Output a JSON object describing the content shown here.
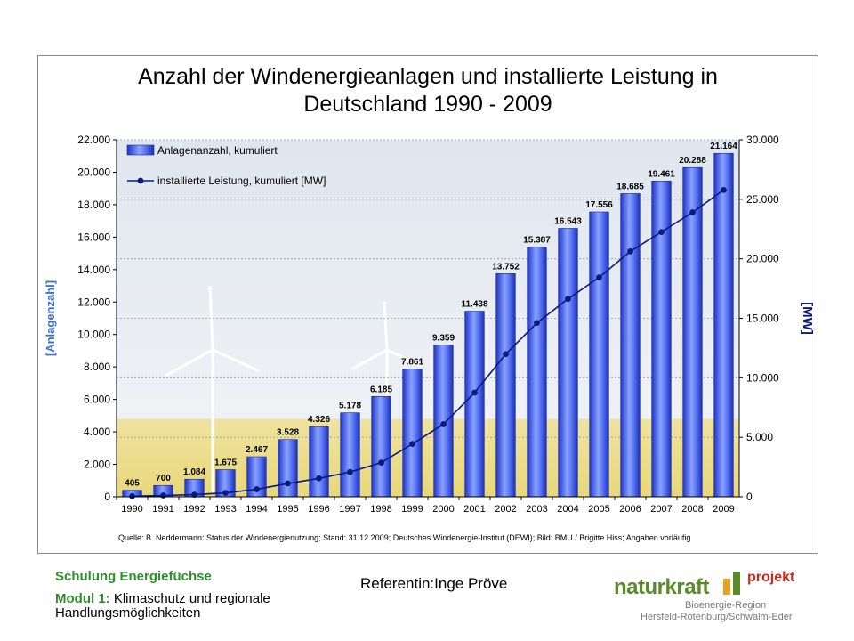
{
  "chart_data": {
    "type": "bar",
    "title": "Anzahl der Windenergieanlagen und installierte Leistung in\nDeutschland 1990 - 2009",
    "categories": [
      "1990",
      "1991",
      "1992",
      "1993",
      "1994",
      "1995",
      "1996",
      "1997",
      "1998",
      "1999",
      "2000",
      "2001",
      "2002",
      "2003",
      "2004",
      "2005",
      "2006",
      "2007",
      "2008",
      "2009"
    ],
    "series": [
      {
        "name": "Anlagenanzahl, kumuliert",
        "kind": "bar",
        "axis": "left",
        "color": "#3d5cf0",
        "values": [
          405,
          700,
          1084,
          1675,
          2467,
          3528,
          4326,
          5178,
          6185,
          7861,
          9359,
          11438,
          13752,
          15387,
          16543,
          17556,
          18685,
          19461,
          20288,
          21164
        ],
        "labels": [
          "405",
          "700",
          "1.084",
          "1.675",
          "2.467",
          "3.528",
          "4.326",
          "5.178",
          "6.185",
          "7.861",
          "9.359",
          "11.438",
          "13.752",
          "15.387",
          "16.543",
          "17.556",
          "18.685",
          "19.461",
          "20.288",
          "21.164"
        ]
      },
      {
        "name": "installierte Leistung, kumuliert [MW]",
        "kind": "line",
        "axis": "right",
        "color": "#0a1a80",
        "values": [
          55,
          110,
          180,
          330,
          630,
          1120,
          1550,
          2080,
          2870,
          4440,
          6100,
          8750,
          11990,
          14610,
          16630,
          18430,
          20620,
          22250,
          23900,
          25780
        ]
      }
    ],
    "ylabel_left": "[Anlagenzahl]",
    "ylabel_right": "[MW]",
    "ylim_left": [
      0,
      22000
    ],
    "ylim_right": [
      0,
      30000
    ],
    "yticks_left": [
      "0",
      "2.000",
      "4.000",
      "6.000",
      "8.000",
      "10.000",
      "12.000",
      "14.000",
      "16.000",
      "18.000",
      "20.000",
      "22.000"
    ],
    "yticks_right": [
      "0",
      "5.000",
      "10.000",
      "15.000",
      "20.000",
      "25.000",
      "30.000"
    ],
    "grid": true,
    "legend_position": "top-left",
    "axis_label_color": "#3b6fd8"
  },
  "source_note": "Quelle: B. Neddermann: Status der Windenergienutzung; Stand: 31.12.2009; Deutsches Windenergie-Institut (DEWI); Bild: BMU / Brigitte Hiss; Angaben vorläufig",
  "footer": {
    "title": "Schulung Energiefüchse",
    "module_prefix": "Modul 1:",
    "module_text": " Klimaschutz und regionale Handlungsmöglichkeiten",
    "speaker": "Referentin:Inge Pröve"
  },
  "logo": {
    "name": "naturkraft",
    "projekt": "projekt",
    "sub1": "Bioenergie-Region",
    "sub2": "Hersfeld-Rotenburg/Schwalm-Eder"
  }
}
